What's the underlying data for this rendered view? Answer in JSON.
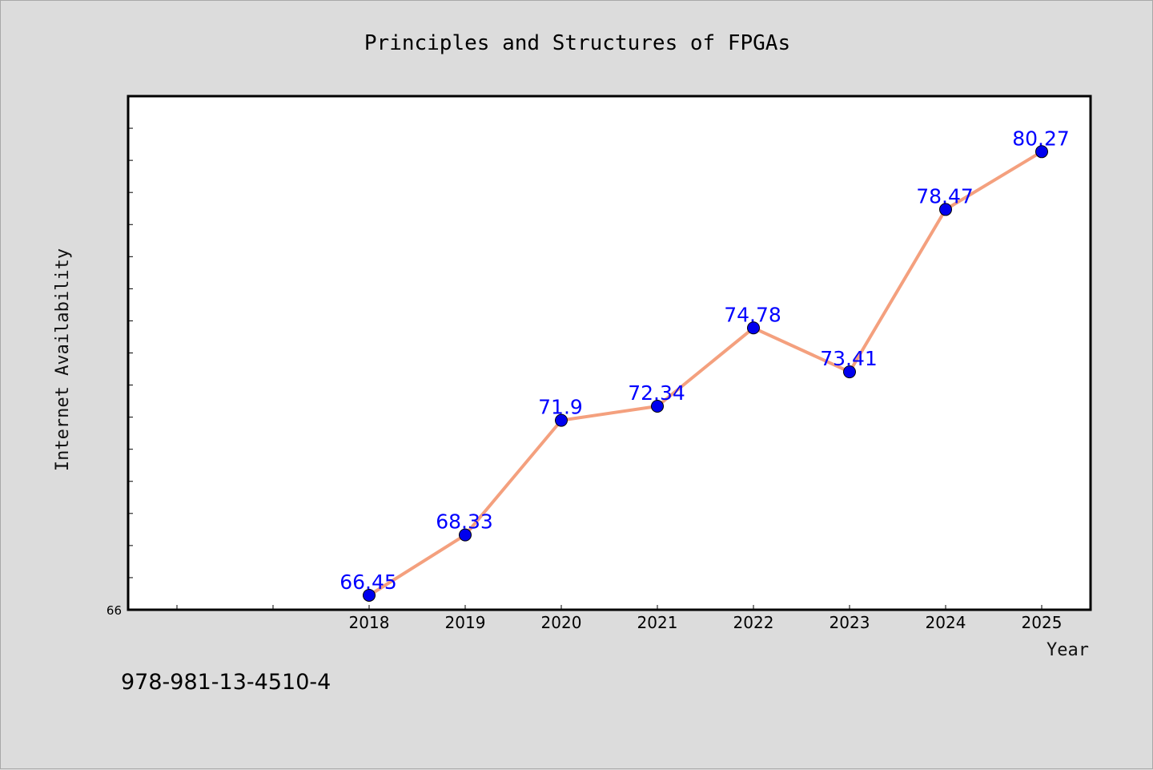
{
  "chart_data": {
    "type": "line",
    "title": "Principles and Structures of FPGAs",
    "xlabel": "Year",
    "ylabel": "Internet Availability",
    "categories": [
      "2018",
      "2019",
      "2020",
      "2021",
      "2022",
      "2023",
      "2024",
      "2025"
    ],
    "series": [
      {
        "values": [
          66.45,
          68.33,
          71.9,
          72.34,
          74.78,
          73.41,
          78.47,
          80.27
        ],
        "line_color": "#f4a07e",
        "marker_color": "#0000ee",
        "label_color": "#0000ff"
      }
    ],
    "ylim": [
      66,
      82
    ],
    "y_tick_labels": [
      "66"
    ],
    "y_minor_tick_step": 1,
    "grid": false
  },
  "footer": {
    "isbn": "978-981-13-4510-4"
  }
}
